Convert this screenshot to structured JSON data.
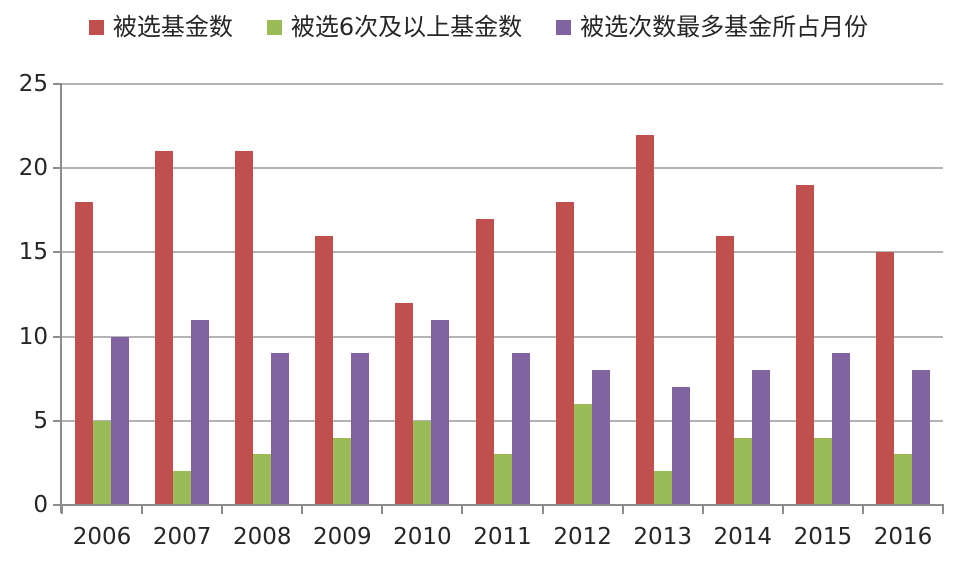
{
  "chart_data": {
    "type": "bar",
    "title": "",
    "categories": [
      "2006",
      "2007",
      "2008",
      "2009",
      "2010",
      "2011",
      "2012",
      "2013",
      "2014",
      "2015",
      "2016"
    ],
    "series": [
      {
        "name": "被选基金数",
        "color": "#C0504D",
        "values": [
          18,
          21,
          21,
          16,
          12,
          17,
          18,
          22,
          16,
          19,
          15
        ]
      },
      {
        "name": "被选6次及以上基金数",
        "color": "#9BBB59",
        "values": [
          5,
          2,
          3,
          4,
          5,
          3,
          6,
          2,
          4,
          4,
          3
        ]
      },
      {
        "name": "被选次数最多基金所占月份",
        "color": "#8064A2",
        "values": [
          10,
          11,
          9,
          9,
          11,
          9,
          8,
          7,
          8,
          9,
          8
        ]
      }
    ],
    "xlabel": "",
    "ylabel": "",
    "ylim": [
      0,
      25
    ],
    "yticks": [
      0,
      5,
      10,
      15,
      20,
      25
    ],
    "grid": "horizontal",
    "legend_position": "top"
  },
  "colors": {
    "background": "#FFFFFF",
    "gridline": "#B3B3B3",
    "axis": "#8C8C8C",
    "text": "#262626"
  }
}
